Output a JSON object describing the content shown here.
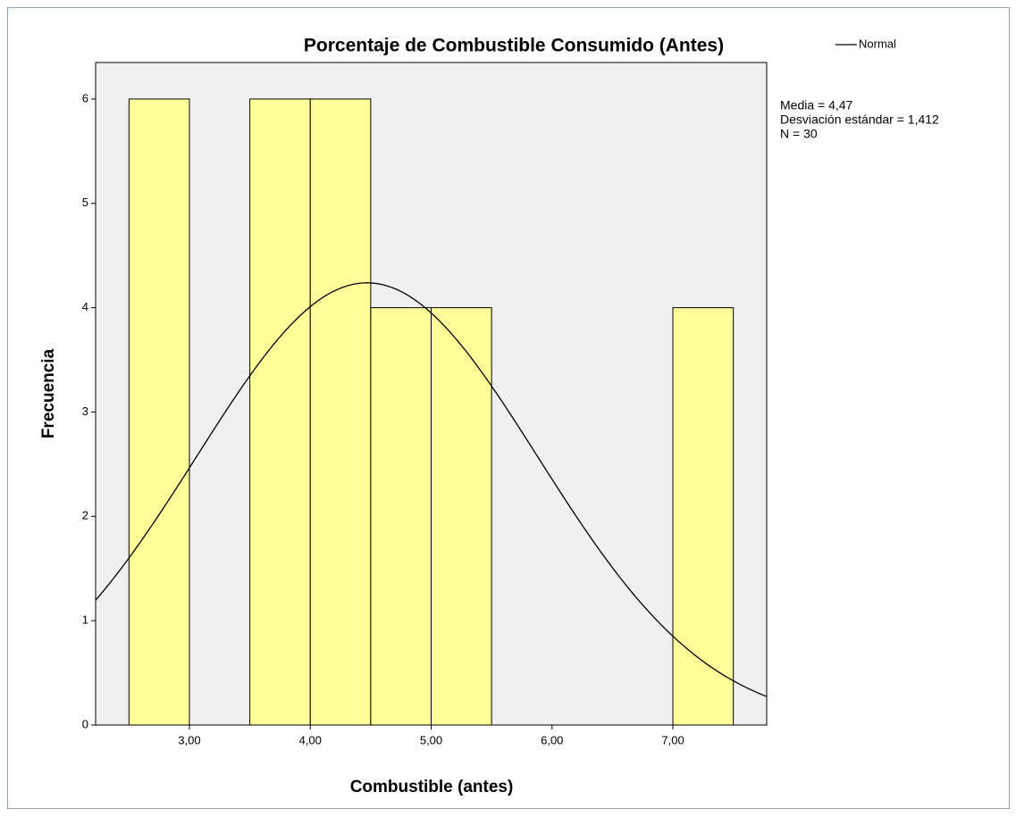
{
  "chart_data": {
    "type": "histogram",
    "title": "Porcentaje de Combustible Consumido (Antes)",
    "x_label": "Combustible (antes)",
    "y_label": "Frecuencia",
    "bins": [
      2.5,
      3,
      3.5,
      4,
      4.5,
      5,
      5.5,
      6,
      6.5,
      7,
      7.5
    ],
    "counts": [
      6,
      0,
      6,
      6,
      4,
      4,
      0,
      0,
      0,
      4
    ],
    "color": "#ffff99",
    "xlim": [
      2.224,
      7.776
    ],
    "xticks": [
      {
        "value": 3,
        "label": "3,00"
      },
      {
        "value": 4,
        "label": "4,00"
      },
      {
        "value": 5,
        "label": "5,00"
      },
      {
        "value": 6,
        "label": "6,00"
      },
      {
        "value": 7,
        "label": "7,00"
      }
    ],
    "ylim": [
      0,
      6.35
    ],
    "yticks": [
      0,
      1,
      2,
      3,
      4,
      5,
      6
    ],
    "series": [
      {
        "name": "Normal",
        "color": "#000000"
      }
    ],
    "normal_curve": {
      "mean": 4.47,
      "sd": 1.412,
      "n": 30
    },
    "annotations": [
      "Media = 4,47",
      "Desviación estándar = 1,412",
      "N = 30"
    ],
    "legend": "top-right"
  }
}
